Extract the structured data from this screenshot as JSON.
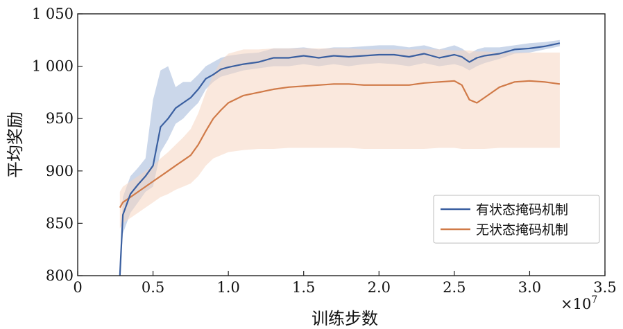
{
  "chart_data": {
    "type": "line",
    "xlabel": "训练步数",
    "ylabel": "平均奖励",
    "x_multiplier_label": "×10",
    "x_multiplier_exp": "7",
    "xlim": [
      0,
      3.5
    ],
    "ylim": [
      800,
      1050
    ],
    "x_ticks": [
      0,
      0.5,
      1.0,
      1.5,
      2.0,
      2.5,
      3.0,
      3.5
    ],
    "x_tick_labels": [
      "0",
      "0.5",
      "1.0",
      "1.5",
      "2.0",
      "2.5",
      "3.0",
      "3.5"
    ],
    "y_ticks": [
      800,
      850,
      900,
      950,
      1000,
      1050
    ],
    "y_tick_labels": [
      "800",
      "850",
      "900",
      "950",
      "1 000",
      "1 050"
    ],
    "grid": false,
    "legend_position": "lower-right",
    "x": [
      0.28,
      0.3,
      0.35,
      0.4,
      0.45,
      0.5,
      0.55,
      0.6,
      0.65,
      0.7,
      0.75,
      0.8,
      0.85,
      0.9,
      0.95,
      1.0,
      1.1,
      1.2,
      1.3,
      1.4,
      1.5,
      1.6,
      1.7,
      1.8,
      1.9,
      2.0,
      2.1,
      2.2,
      2.3,
      2.4,
      2.5,
      2.55,
      2.6,
      2.65,
      2.7,
      2.8,
      2.9,
      3.0,
      3.1,
      3.2
    ],
    "series": [
      {
        "name": "有状态掩码机制",
        "color": "#3a5fa0",
        "band_color": "#a9bddc",
        "values": [
          800,
          858,
          878,
          887,
          895,
          905,
          942,
          950,
          960,
          965,
          970,
          978,
          988,
          992,
          997,
          999,
          1002,
          1004,
          1008,
          1008,
          1010,
          1008,
          1010,
          1009,
          1010,
          1011,
          1011,
          1009,
          1012,
          1008,
          1011,
          1009,
          1004,
          1008,
          1010,
          1012,
          1016,
          1017,
          1019,
          1022
        ],
        "lower": [
          800,
          840,
          860,
          870,
          880,
          885,
          918,
          930,
          945,
          950,
          958,
          965,
          978,
          985,
          990,
          992,
          996,
          998,
          1000,
          1000,
          1002,
          1000,
          1002,
          1000,
          1002,
          1003,
          1002,
          1000,
          1003,
          1000,
          1002,
          1000,
          996,
          1000,
          1003,
          1007,
          1012,
          1013,
          1016,
          1019
        ],
        "upper": [
          800,
          875,
          895,
          903,
          912,
          968,
          996,
          1000,
          980,
          985,
          985,
          992,
          1000,
          1004,
          1008,
          1010,
          1012,
          1013,
          1017,
          1017,
          1018,
          1016,
          1018,
          1018,
          1019,
          1020,
          1020,
          1018,
          1020,
          1016,
          1020,
          1017,
          1012,
          1016,
          1018,
          1018,
          1020,
          1022,
          1023,
          1025
        ]
      },
      {
        "name": "无状态掩码机制",
        "color": "#d07a48",
        "band_color": "#f6d5c1",
        "values": [
          865,
          870,
          875,
          880,
          885,
          890,
          895,
          900,
          905,
          910,
          915,
          925,
          938,
          950,
          958,
          965,
          972,
          975,
          978,
          980,
          981,
          982,
          983,
          983,
          982,
          982,
          982,
          982,
          984,
          985,
          986,
          982,
          968,
          965,
          970,
          980,
          985,
          986,
          985,
          983
        ],
        "lower": [
          845,
          850,
          855,
          860,
          865,
          870,
          875,
          878,
          882,
          885,
          888,
          895,
          905,
          912,
          915,
          918,
          920,
          921,
          921,
          922,
          922,
          922,
          922,
          922,
          921,
          921,
          921,
          921,
          921,
          922,
          922,
          921,
          921,
          921,
          921,
          922,
          922,
          922,
          922,
          922
        ],
        "upper": [
          880,
          885,
          890,
          895,
          900,
          905,
          912,
          918,
          925,
          932,
          940,
          955,
          975,
          992,
          1005,
          1012,
          1016,
          1016,
          1017,
          1017,
          1017,
          1017,
          1017,
          1017,
          1016,
          1016,
          1016,
          1016,
          1016,
          1016,
          1015,
          1015,
          1015,
          1014,
          1014,
          1013,
          1013,
          1013,
          1013,
          1013
        ]
      }
    ]
  }
}
